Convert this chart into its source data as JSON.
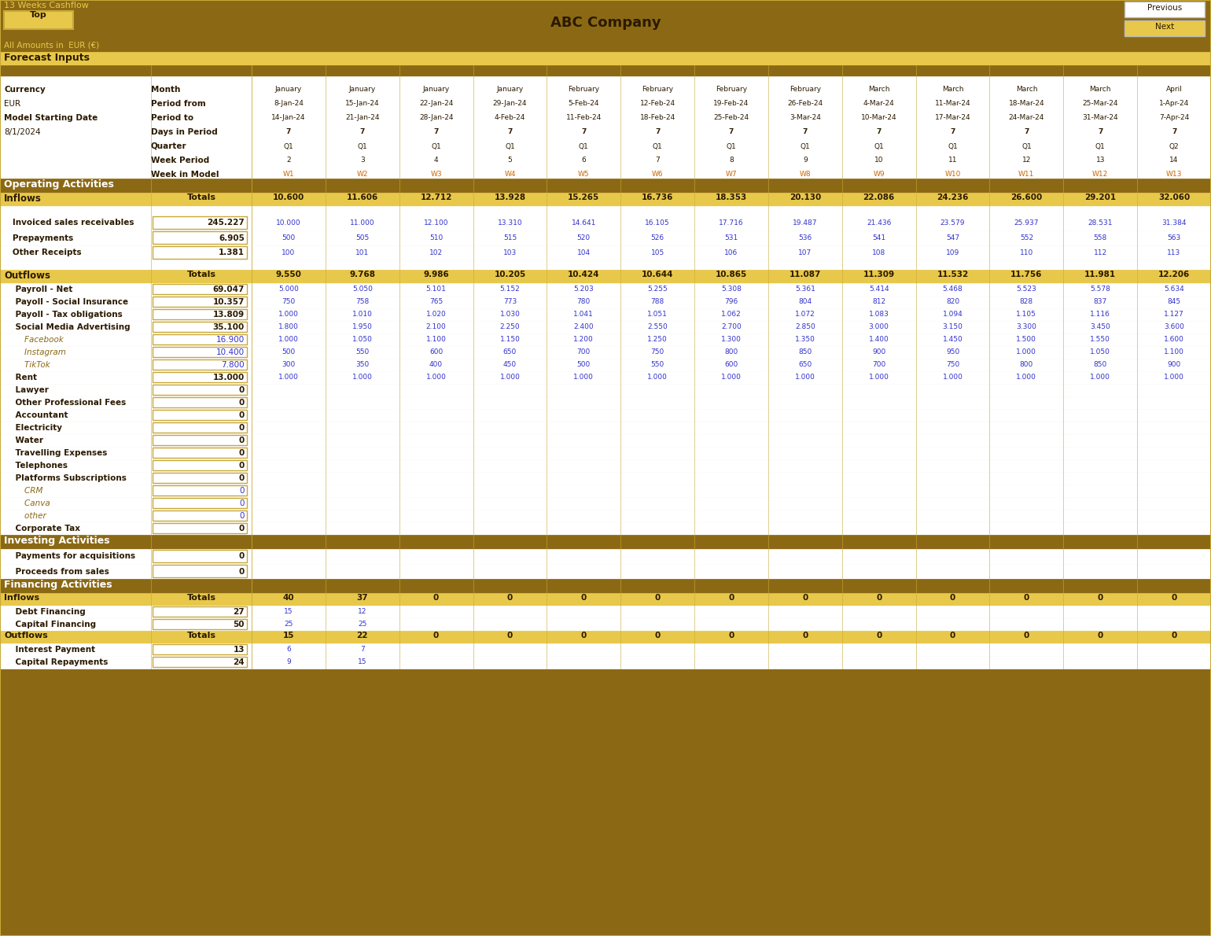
{
  "title": "ABC Company",
  "header_title": "13 Weeks Cashflow",
  "subtitle": "All Amounts in  EUR (€)",
  "bg_dark": "#8B6914",
  "bg_medium": "#C8A838",
  "bg_light": "#E8C84A",
  "bg_white": "#FFFFFF",
  "text_dark": "#2B1A00",
  "text_gold": "#8B6914",
  "text_blue": "#3333CC",
  "text_orange": "#CC6600",
  "months": [
    "January",
    "January",
    "January",
    "January",
    "February",
    "February",
    "February",
    "February",
    "March",
    "March",
    "March",
    "March",
    "April"
  ],
  "periods_from": [
    "8-Jan-24",
    "15-Jan-24",
    "22-Jan-24",
    "29-Jan-24",
    "5-Feb-24",
    "12-Feb-24",
    "19-Feb-24",
    "26-Feb-24",
    "4-Mar-24",
    "11-Mar-24",
    "18-Mar-24",
    "25-Mar-24",
    "1-Apr-24"
  ],
  "periods_to": [
    "14-Jan-24",
    "21-Jan-24",
    "28-Jan-24",
    "4-Feb-24",
    "11-Feb-24",
    "18-Feb-24",
    "25-Feb-24",
    "3-Mar-24",
    "10-Mar-24",
    "17-Mar-24",
    "24-Mar-24",
    "31-Mar-24",
    "7-Apr-24"
  ],
  "days": [
    "7",
    "7",
    "7",
    "7",
    "7",
    "7",
    "7",
    "7",
    "7",
    "7",
    "7",
    "7",
    "7"
  ],
  "quarters": [
    "Q1",
    "Q1",
    "Q1",
    "Q1",
    "Q1",
    "Q1",
    "Q1",
    "Q1",
    "Q1",
    "Q1",
    "Q1",
    "Q1",
    "Q2"
  ],
  "week_periods": [
    "2",
    "3",
    "4",
    "5",
    "6",
    "7",
    "8",
    "9",
    "10",
    "11",
    "12",
    "13",
    "14"
  ],
  "week_in_model": [
    "W1",
    "W2",
    "W3",
    "W4",
    "W5",
    "W6",
    "W7",
    "W8",
    "W9",
    "W10",
    "W11",
    "W12",
    "W13"
  ],
  "inflows_totals": [
    "10.600",
    "11.606",
    "12.712",
    "13.928",
    "15.265",
    "16.736",
    "18.353",
    "20.130",
    "22.086",
    "24.236",
    "26.600",
    "29.201",
    "32.060"
  ],
  "invoiced": [
    "10.000",
    "11.000",
    "12.100",
    "13.310",
    "14.641",
    "16.105",
    "17.716",
    "19.487",
    "21.436",
    "23.579",
    "25.937",
    "28.531",
    "31.384"
  ],
  "prepayments": [
    "500",
    "505",
    "510",
    "515",
    "520",
    "526",
    "531",
    "536",
    "541",
    "547",
    "552",
    "558",
    "563"
  ],
  "other_receipts": [
    "100",
    "101",
    "102",
    "103",
    "104",
    "105",
    "106",
    "107",
    "108",
    "109",
    "110",
    "112",
    "113"
  ],
  "outflows_totals": [
    "9.550",
    "9.768",
    "9.986",
    "10.205",
    "10.424",
    "10.644",
    "10.865",
    "11.087",
    "11.309",
    "11.532",
    "11.756",
    "11.981",
    "12.206"
  ],
  "payroll_net": [
    "5.000",
    "5.050",
    "5.101",
    "5.152",
    "5.203",
    "5.255",
    "5.308",
    "5.361",
    "5.414",
    "5.468",
    "5.523",
    "5.578",
    "5.634"
  ],
  "payoll_social": [
    "750",
    "758",
    "765",
    "773",
    "780",
    "788",
    "796",
    "804",
    "812",
    "820",
    "828",
    "837",
    "845"
  ],
  "payoll_tax": [
    "1.000",
    "1.010",
    "1.020",
    "1.030",
    "1.041",
    "1.051",
    "1.062",
    "1.072",
    "1.083",
    "1.094",
    "1.105",
    "1.116",
    "1.127"
  ],
  "social_media": [
    "1.800",
    "1.950",
    "2.100",
    "2.250",
    "2.400",
    "2.550",
    "2.700",
    "2.850",
    "3.000",
    "3.150",
    "3.300",
    "3.450",
    "3.600"
  ],
  "facebook": [
    "1.000",
    "1.050",
    "1.100",
    "1.150",
    "1.200",
    "1.250",
    "1.300",
    "1.350",
    "1.400",
    "1.450",
    "1.500",
    "1.550",
    "1.600"
  ],
  "instagram": [
    "500",
    "550",
    "600",
    "650",
    "700",
    "750",
    "800",
    "850",
    "900",
    "950",
    "1.000",
    "1.050",
    "1.100"
  ],
  "tiktok": [
    "300",
    "350",
    "400",
    "450",
    "500",
    "550",
    "600",
    "650",
    "700",
    "750",
    "800",
    "850",
    "900"
  ],
  "rent": [
    "1.000",
    "1.000",
    "1.000",
    "1.000",
    "1.000",
    "1.000",
    "1.000",
    "1.000",
    "1.000",
    "1.000",
    "1.000",
    "1.000",
    "1.000"
  ],
  "financing_inflows_totals": [
    "40",
    "37",
    "0",
    "0",
    "0",
    "0",
    "0",
    "0",
    "0",
    "0",
    "0",
    "0",
    "0"
  ],
  "debt_financing": [
    "15",
    "12",
    "",
    "",
    "",
    "",
    "",
    "",
    "",
    "",
    "",
    "",
    ""
  ],
  "capital_financing": [
    "25",
    "25",
    "",
    "",
    "",
    "",
    "",
    "",
    "",
    "",
    "",
    "",
    ""
  ],
  "financing_outflows_totals": [
    "15",
    "22",
    "0",
    "0",
    "0",
    "0",
    "0",
    "0",
    "0",
    "0",
    "0",
    "0",
    "0"
  ],
  "interest_payment": [
    "6",
    "7",
    "",
    "",
    "",
    "",
    "",
    "",
    "",
    "",
    "",
    "",
    ""
  ],
  "capital_repayments": [
    "9",
    "15",
    "",
    "",
    "",
    "",
    "",
    "",
    "",
    "",
    "",
    "",
    ""
  ],
  "totals_col": {
    "invoiced_total": "245.227",
    "prepayments_total": "6.905",
    "other_receipts_total": "1.381",
    "payroll_net_total": "69.047",
    "payoll_social_total": "10.357",
    "payoll_tax_total": "13.809",
    "social_media_total": "35.100",
    "facebook_total": "16.900",
    "instagram_total": "10.400",
    "tiktok_total": "7.800",
    "rent_total": "13.000",
    "debt_financing_total": "27",
    "capital_financing_total": "50",
    "interest_payment_total": "13",
    "capital_repayments_total": "24"
  }
}
